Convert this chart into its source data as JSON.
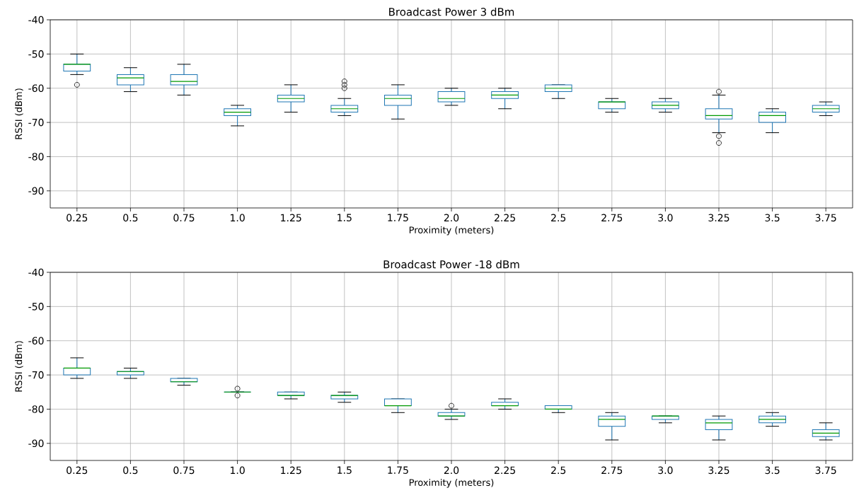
{
  "chart_data": [
    {
      "type": "box",
      "title": "Broadcast Power 3 dBm",
      "xlabel": "Proximity (meters)",
      "ylabel": "RSSI (dBm)",
      "categories": [
        "0.25",
        "0.5",
        "0.75",
        "1.0",
        "1.25",
        "1.5",
        "1.75",
        "2.0",
        "2.25",
        "2.5",
        "2.75",
        "3.0",
        "3.25",
        "3.5",
        "3.75"
      ],
      "series": [
        {
          "color": "#1f77b4",
          "boxes": [
            {
              "low": -56,
              "q1": -55,
              "median": -53,
              "q3": -53,
              "high": -50,
              "outliers": [
                -59
              ]
            },
            {
              "low": -61,
              "q1": -59,
              "median": -57,
              "q3": -56,
              "high": -54
            },
            {
              "low": -62,
              "q1": -59,
              "median": -58,
              "q3": -56,
              "high": -53
            },
            {
              "low": -71,
              "q1": -68,
              "median": -67,
              "q3": -66,
              "high": -65
            },
            {
              "low": -67,
              "q1": -64,
              "median": -63,
              "q3": -62,
              "high": -59
            },
            {
              "low": -68,
              "q1": -67,
              "median": -66,
              "q3": -65,
              "high": -63,
              "outliers": [
                -60,
                -59,
                -58
              ]
            },
            {
              "low": -69,
              "q1": -65,
              "median": -63,
              "q3": -62,
              "high": -59
            },
            {
              "low": -65,
              "q1": -64,
              "median": -63,
              "q3": -61,
              "high": -60
            },
            {
              "low": -66,
              "q1": -63,
              "median": -62,
              "q3": -61,
              "high": -60
            },
            {
              "low": -63,
              "q1": -61,
              "median": -60,
              "q3": -59,
              "high": -59
            },
            {
              "low": -67,
              "q1": -66,
              "median": -64,
              "q3": -64,
              "high": -63
            },
            {
              "low": -67,
              "q1": -66,
              "median": -65,
              "q3": -64,
              "high": -63
            },
            {
              "low": -73,
              "q1": -69,
              "median": -68,
              "q3": -66,
              "high": -62,
              "outliers": [
                -61,
                -74,
                -76
              ]
            },
            {
              "low": -73,
              "q1": -70,
              "median": -68,
              "q3": -67,
              "high": -66
            },
            {
              "low": -68,
              "q1": -67,
              "median": -66,
              "q3": -65,
              "high": -64
            }
          ]
        }
      ],
      "ylim": [
        -95,
        -40
      ],
      "yticks": [
        -90,
        -80,
        -70,
        -60,
        -50,
        -40
      ],
      "grid": true
    },
    {
      "type": "box",
      "title": "Broadcast Power -18 dBm",
      "xlabel": "Proximity (meters)",
      "ylabel": "RSSI (dBm)",
      "categories": [
        "0.25",
        "0.5",
        "0.75",
        "1.0",
        "1.25",
        "1.5",
        "1.75",
        "2.0",
        "2.25",
        "2.5",
        "2.75",
        "3.0",
        "3.25",
        "3.5",
        "3.75"
      ],
      "series": [
        {
          "color": "#1f77b4",
          "boxes": [
            {
              "low": -71,
              "q1": -70,
              "median": -68,
              "q3": -68,
              "high": -65
            },
            {
              "low": -71,
              "q1": -70,
              "median": -69,
              "q3": -69,
              "high": -68
            },
            {
              "low": -73,
              "q1": -72,
              "median": -72,
              "q3": -71,
              "high": -71
            },
            {
              "low": -75,
              "q1": -75,
              "median": -75,
              "q3": -75,
              "high": -75,
              "outliers": [
                -74,
                -76
              ]
            },
            {
              "low": -77,
              "q1": -76,
              "median": -76,
              "q3": -75,
              "high": -75
            },
            {
              "low": -78,
              "q1": -77,
              "median": -76,
              "q3": -76,
              "high": -75
            },
            {
              "low": -81,
              "q1": -79,
              "median": -79,
              "q3": -77,
              "high": -77
            },
            {
              "low": -83,
              "q1": -82,
              "median": -82,
              "q3": -81,
              "high": -80,
              "outliers": [
                -79
              ]
            },
            {
              "low": -80,
              "q1": -79,
              "median": -79,
              "q3": -78,
              "high": -77
            },
            {
              "low": -81,
              "q1": -80,
              "median": -80,
              "q3": -79,
              "high": -79
            },
            {
              "low": -89,
              "q1": -85,
              "median": -83,
              "q3": -82,
              "high": -81
            },
            {
              "low": -84,
              "q1": -83,
              "median": -82,
              "q3": -82,
              "high": -82
            },
            {
              "low": -89,
              "q1": -86,
              "median": -84,
              "q3": -83,
              "high": -82
            },
            {
              "low": -85,
              "q1": -84,
              "median": -83,
              "q3": -82,
              "high": -81
            },
            {
              "low": -89,
              "q1": -88,
              "median": -87,
              "q3": -86,
              "high": -84
            }
          ]
        }
      ],
      "ylim": [
        -95,
        -40
      ],
      "yticks": [
        -90,
        -80,
        -70,
        -60,
        -50,
        -40
      ],
      "grid": true
    }
  ]
}
